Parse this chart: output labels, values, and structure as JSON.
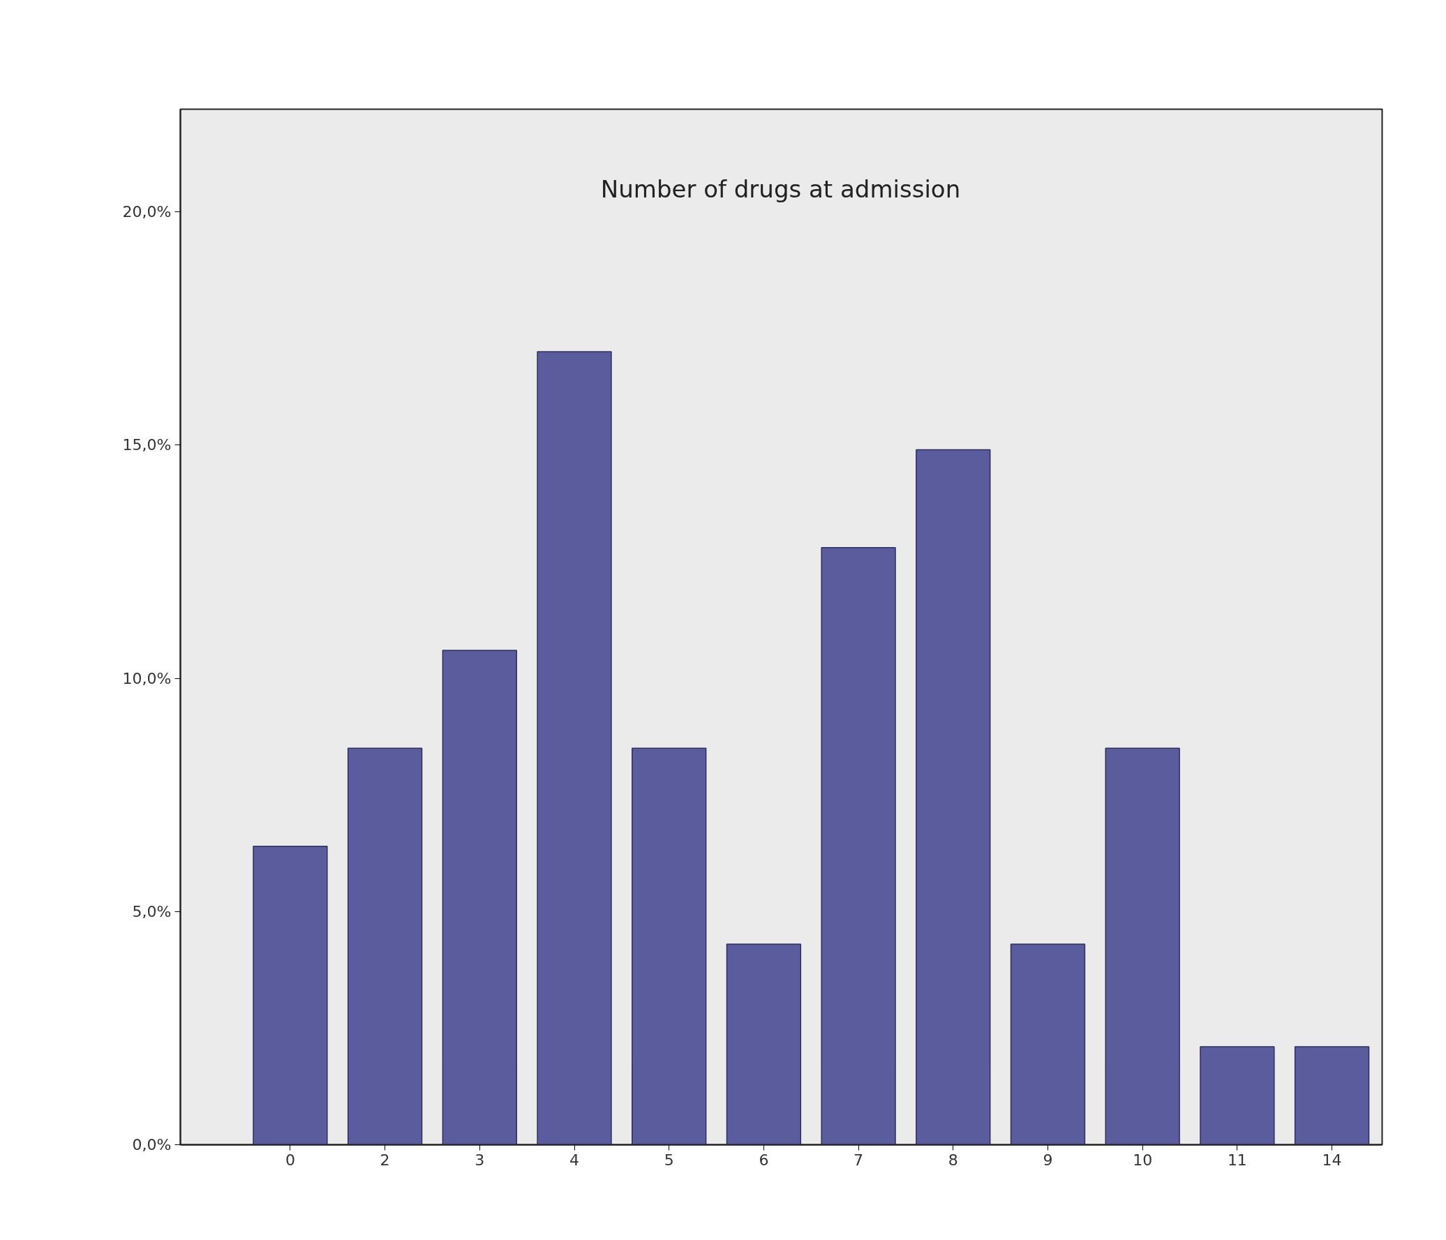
{
  "chart_data": {
    "type": "bar",
    "title": "Number of drugs at admission",
    "categories": [
      "0",
      "2",
      "3",
      "4",
      "5",
      "6",
      "7",
      "8",
      "9",
      "10",
      "11",
      "14"
    ],
    "values": [
      6.4,
      8.5,
      10.6,
      17.0,
      8.5,
      4.3,
      12.8,
      14.9,
      4.3,
      8.5,
      2.1,
      2.1
    ],
    "color": "#5a5c9e",
    "ylim": [
      0,
      22.2
    ],
    "yticks": [
      {
        "value": 0,
        "label": "0,0%"
      },
      {
        "value": 5,
        "label": "5,0%"
      },
      {
        "value": 10,
        "label": "10,0%"
      },
      {
        "value": 15,
        "label": "15,0%"
      },
      {
        "value": 20,
        "label": "20,0%"
      }
    ],
    "grid": false
  }
}
